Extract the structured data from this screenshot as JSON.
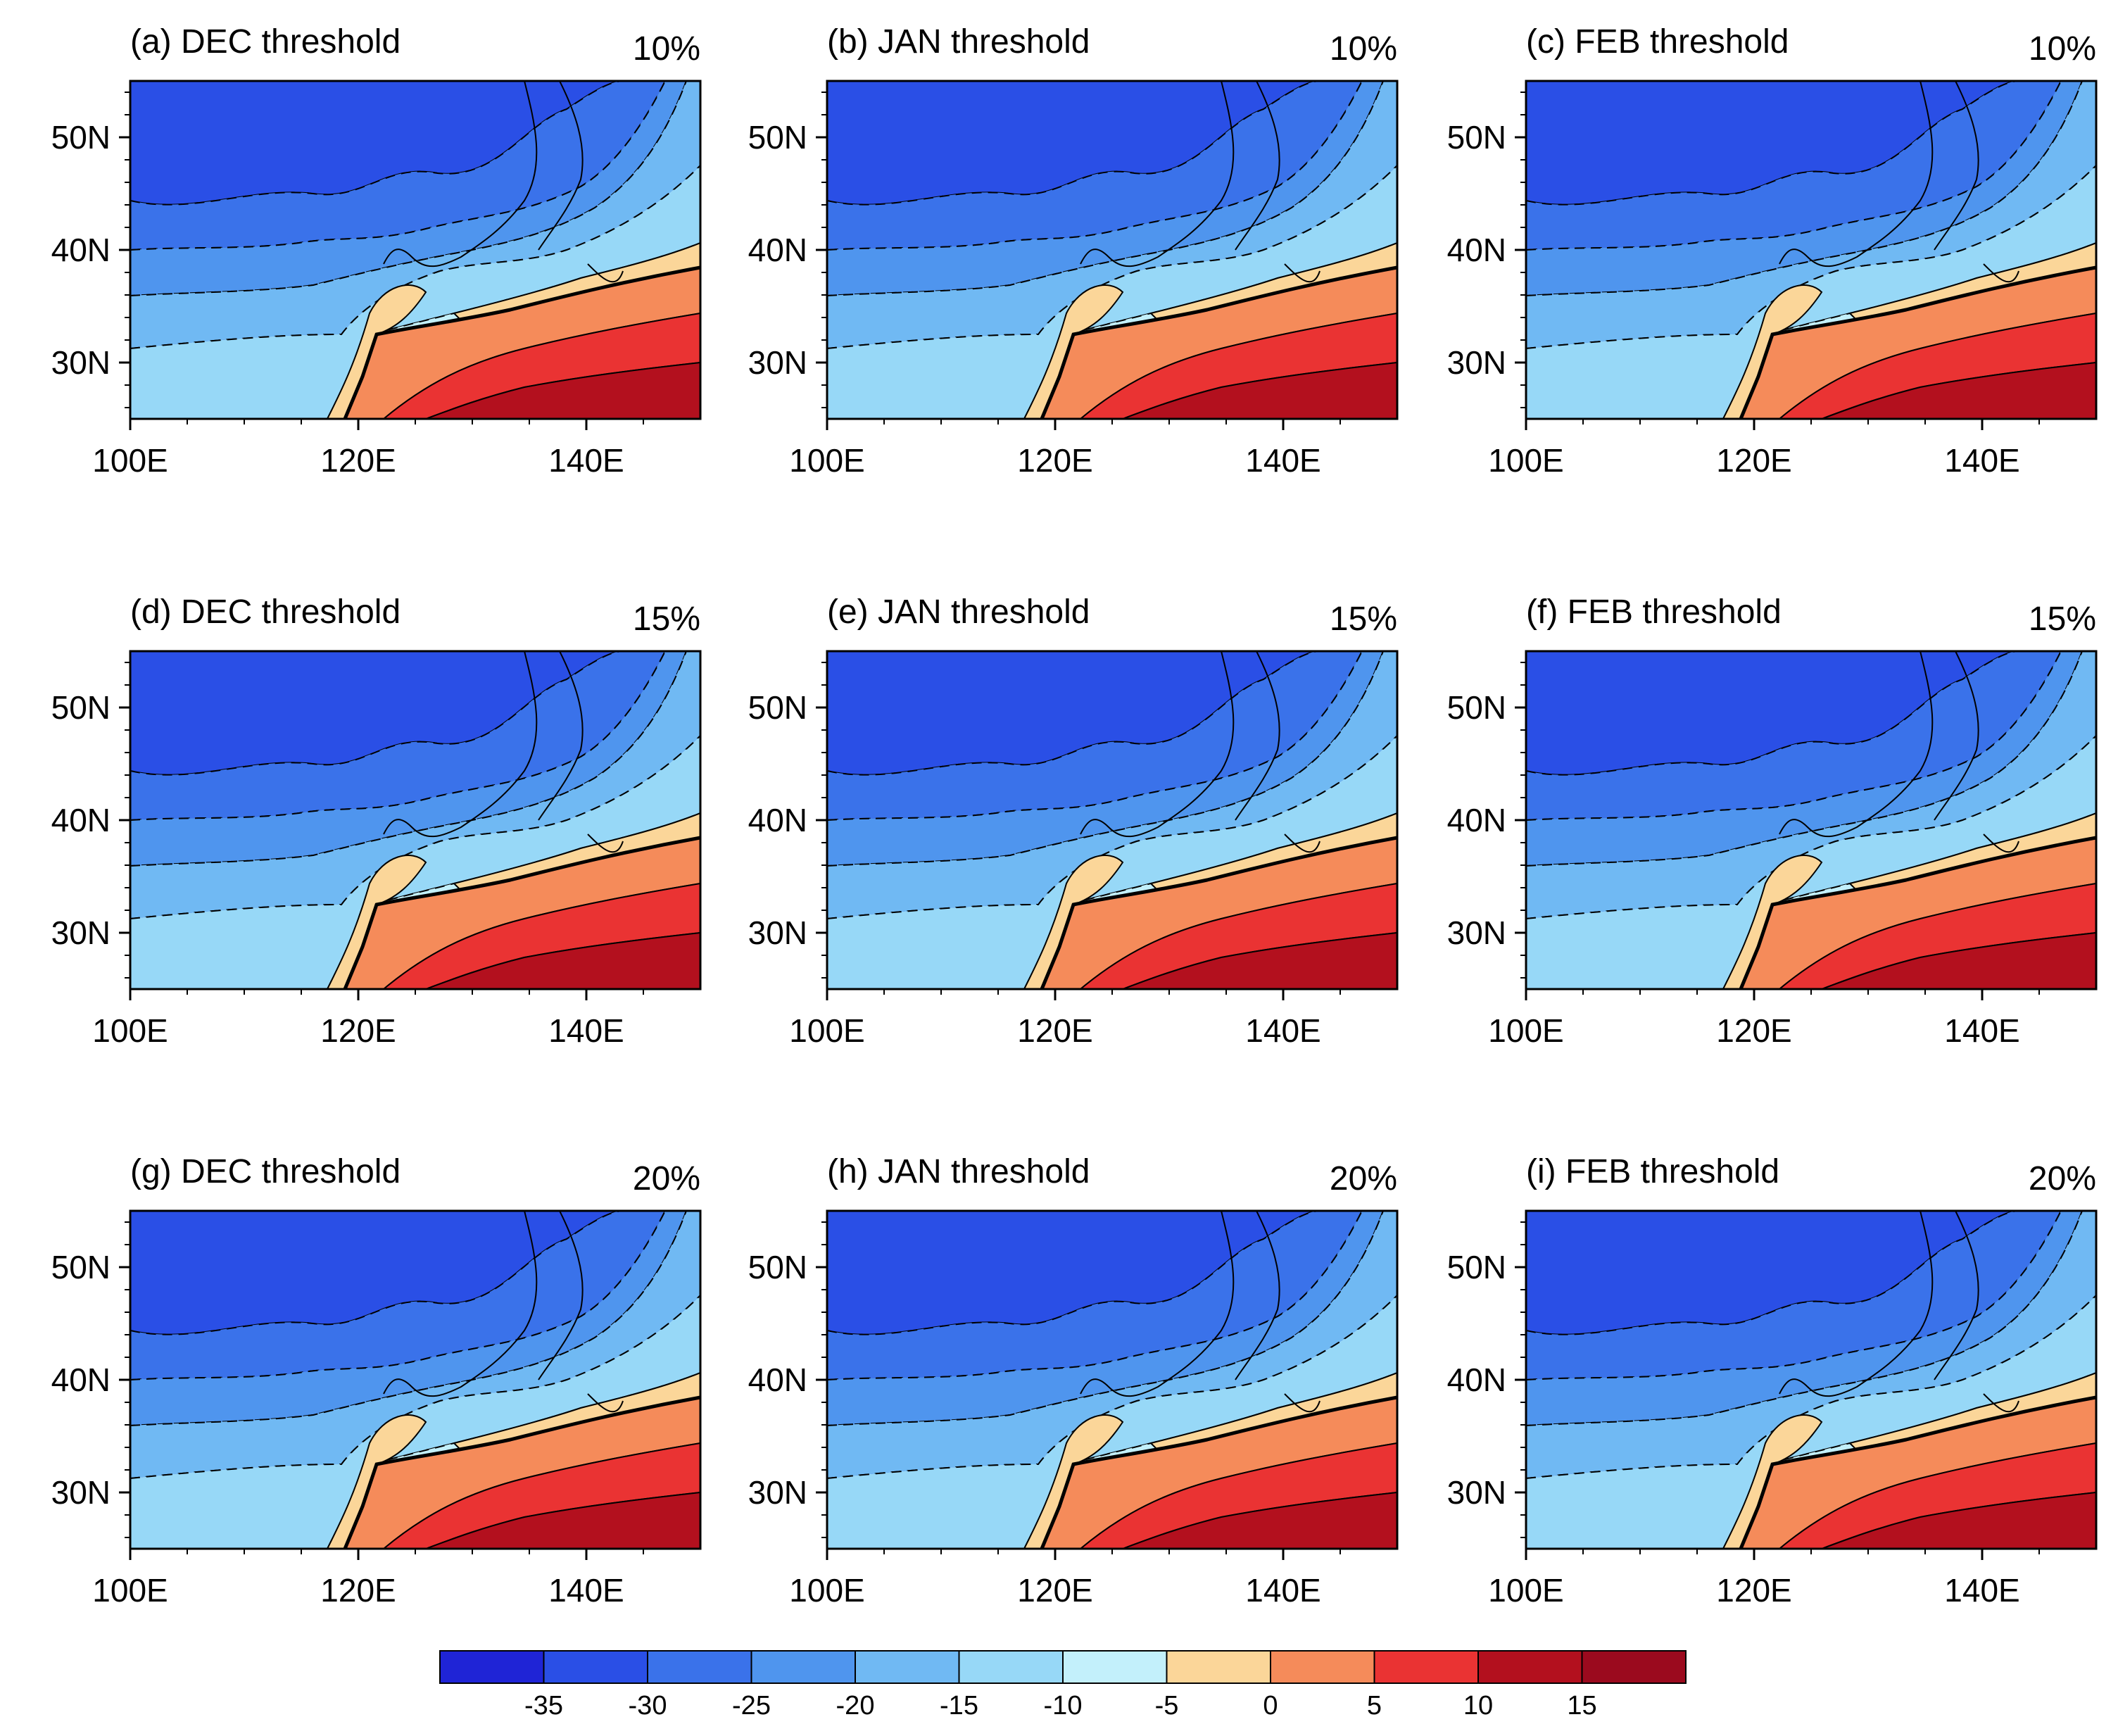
{
  "figure": {
    "panels": [
      {
        "id": "a",
        "title": "(a) DEC threshold",
        "percent": "10%"
      },
      {
        "id": "b",
        "title": "(b) JAN threshold",
        "percent": "10%"
      },
      {
        "id": "c",
        "title": "(c) FEB threshold",
        "percent": "10%"
      },
      {
        "id": "d",
        "title": "(d) DEC threshold",
        "percent": "15%"
      },
      {
        "id": "e",
        "title": "(e) JAN threshold",
        "percent": "15%"
      },
      {
        "id": "f",
        "title": "(f) FEB threshold",
        "percent": "15%"
      },
      {
        "id": "g",
        "title": "(g) DEC threshold",
        "percent": "20%"
      },
      {
        "id": "h",
        "title": "(h) JAN threshold",
        "percent": "20%"
      },
      {
        "id": "i",
        "title": "(i) FEB threshold",
        "percent": "20%"
      }
    ],
    "axes": {
      "lon_ticks": [
        "100E",
        "120E",
        "140E"
      ],
      "lat_ticks": [
        "50N",
        "40N",
        "30N"
      ],
      "lon_range": [
        100,
        150
      ],
      "lat_range": [
        25,
        55
      ]
    },
    "colorbar": {
      "labels": [
        "-35",
        "-30",
        "-25",
        "-20",
        "-15",
        "-10",
        "-5",
        "0",
        "5",
        "10",
        "15"
      ],
      "colors": [
        "#1f24d6",
        "#2a4fe6",
        "#3a72ea",
        "#4f95ee",
        "#70b9f3",
        "#97d8f7",
        "#c3f0fb",
        "#fbd699",
        "#f58b5a",
        "#ea3333",
        "#b3101e",
        "#9b0a1e"
      ]
    }
  }
}
